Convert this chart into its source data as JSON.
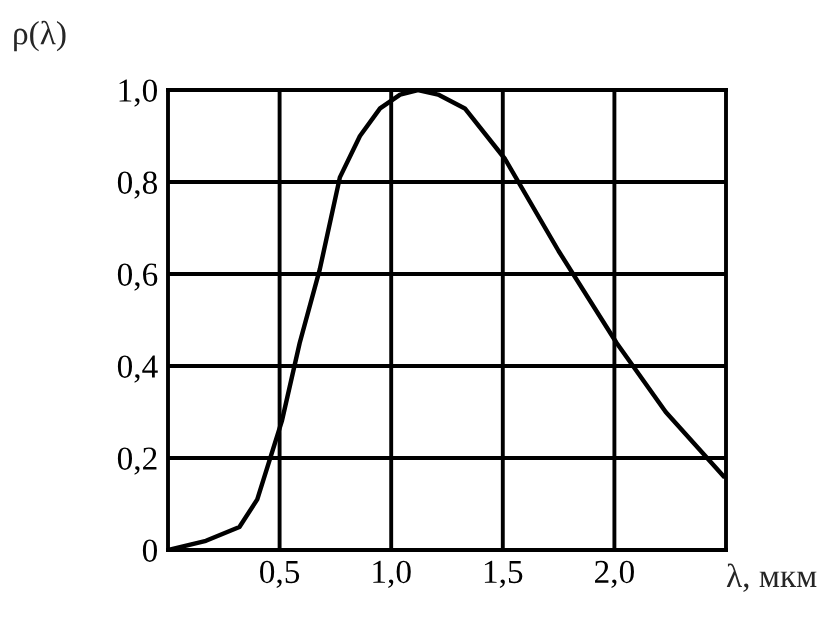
{
  "chart_data": {
    "type": "line",
    "xlabel": "λ, мкм",
    "ylabel": "ρ(λ)",
    "x": [
      0,
      0.17,
      0.32,
      0.4,
      0.51,
      0.59,
      0.68,
      0.77,
      0.86,
      0.95,
      1.04,
      1.12,
      1.21,
      1.33,
      1.51,
      1.75,
      2.01,
      2.23,
      2.49
    ],
    "series": [
      {
        "color": "#000000",
        "values": [
          0,
          0.02,
          0.05,
          0.11,
          0.28,
          0.45,
          0.61,
          0.81,
          0.9,
          0.96,
          0.99,
          1.0,
          0.99,
          0.96,
          0.85,
          0.65,
          0.45,
          0.3,
          0.16
        ]
      }
    ],
    "xlim": [
      0,
      2.5
    ],
    "ylim": [
      0,
      1.0
    ],
    "xticks": [
      {
        "value": 0.5,
        "label": "0,5"
      },
      {
        "value": 1.0,
        "label": "1,0"
      },
      {
        "value": 1.5,
        "label": "1,5"
      },
      {
        "value": 2.0,
        "label": "2,0"
      }
    ],
    "yticks": [
      {
        "value": 0,
        "label": "0"
      },
      {
        "value": 0.2,
        "label": "0,2"
      },
      {
        "value": 0.4,
        "label": "0,4"
      },
      {
        "value": 0.6,
        "label": "0,6"
      },
      {
        "value": 0.8,
        "label": "0,8"
      },
      {
        "value": 1.0,
        "label": "1,0"
      }
    ],
    "grid": true,
    "marker": "none",
    "line_style": "solid"
  }
}
